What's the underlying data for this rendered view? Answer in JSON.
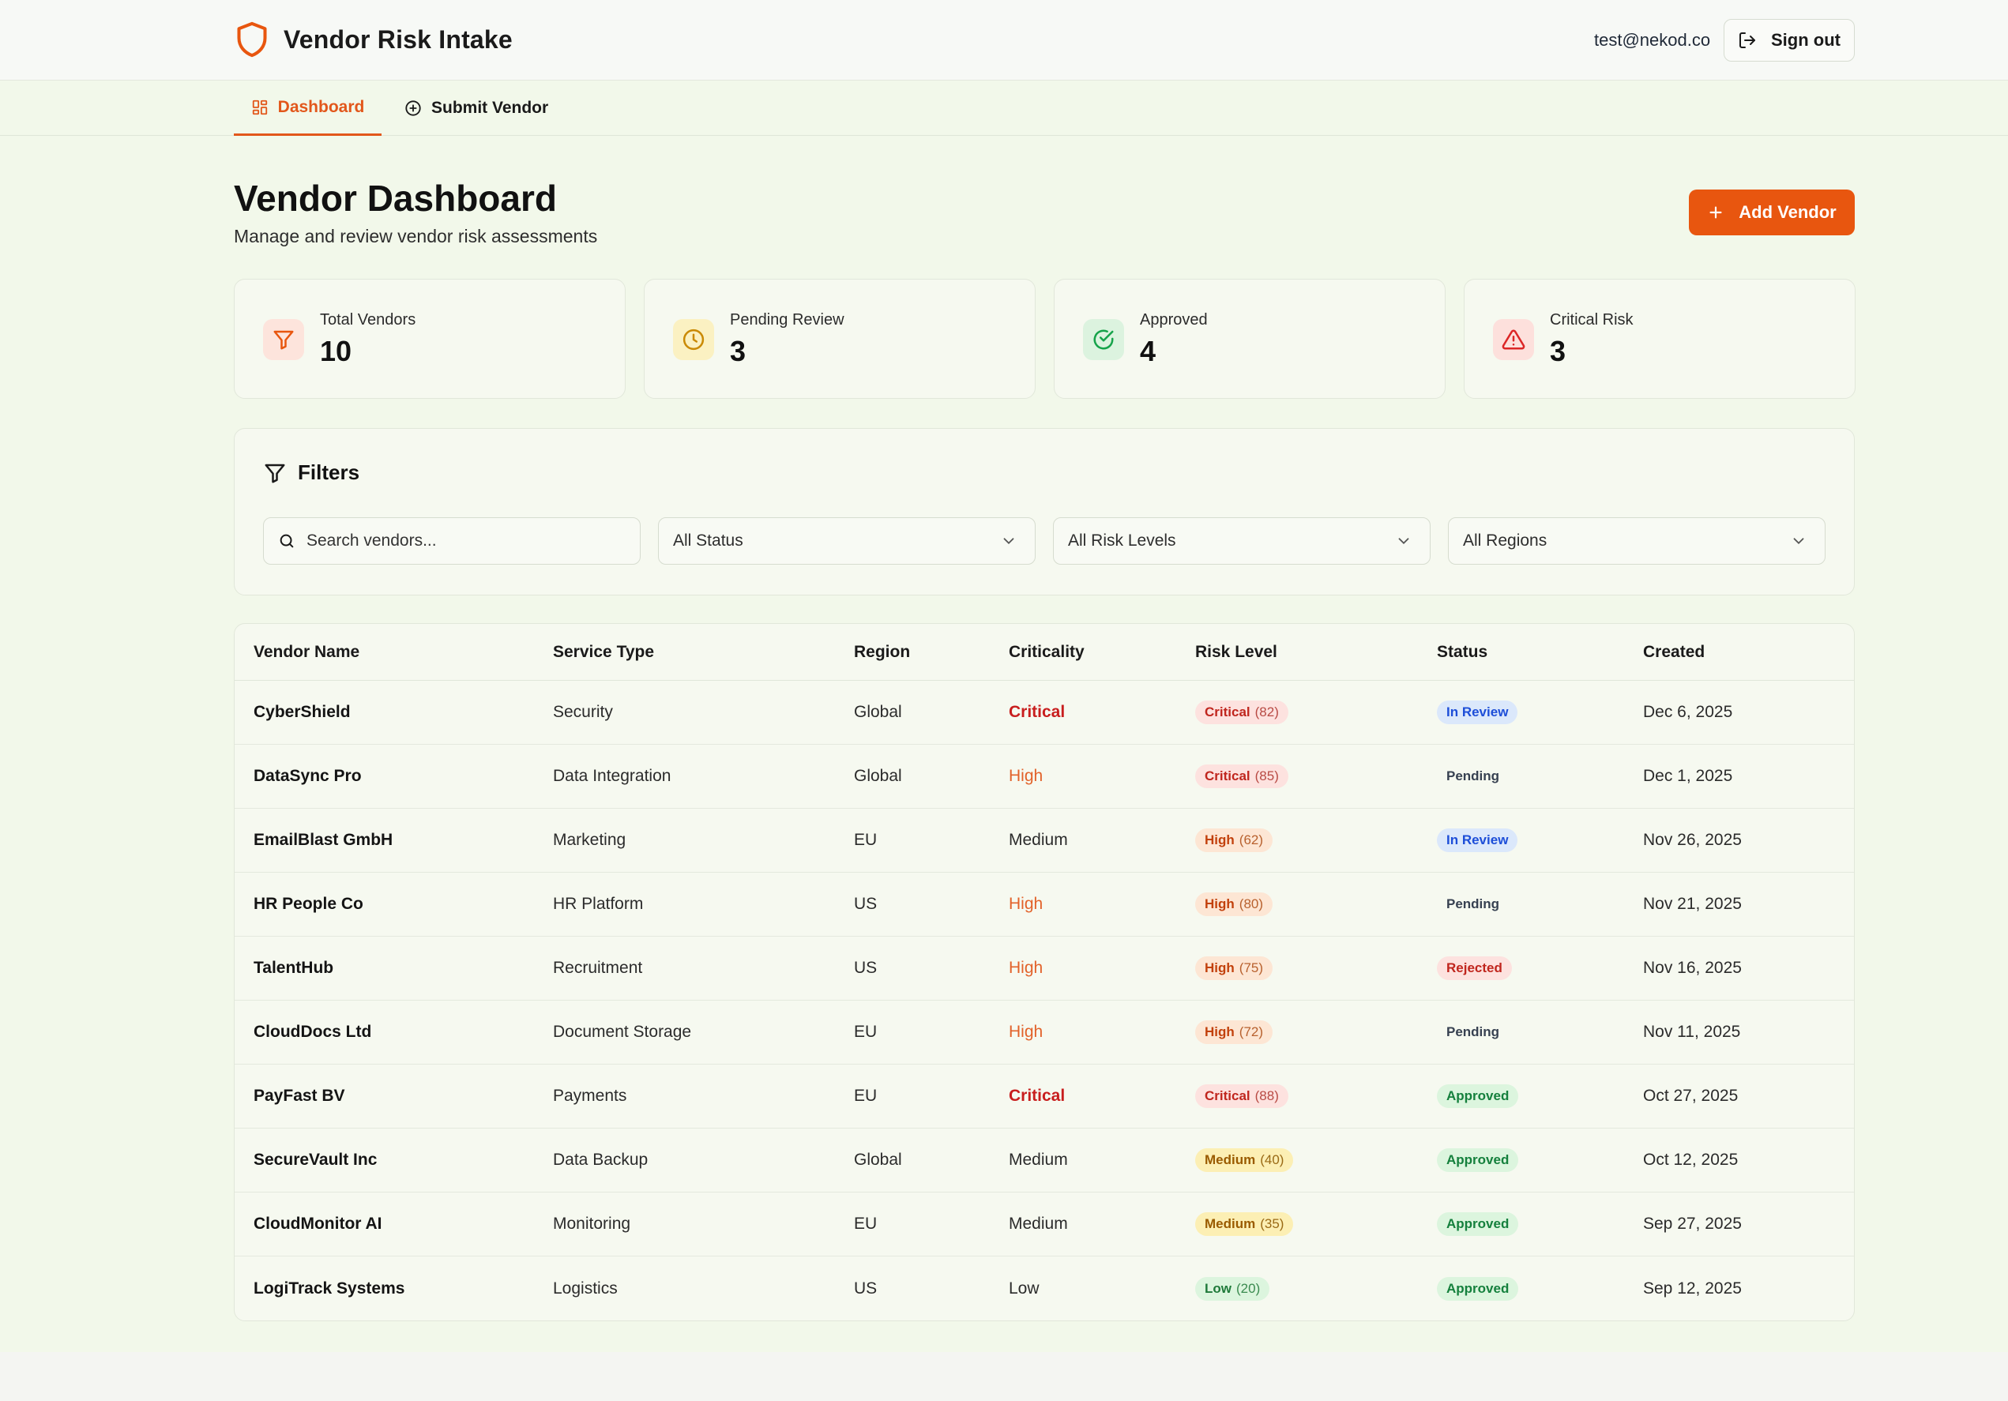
{
  "app": {
    "title": "Vendor Risk Intake",
    "user_email": "test@nekod.co",
    "sign_out_label": "Sign out",
    "accent_color": "#e8560f"
  },
  "tabs": [
    {
      "label": "Dashboard",
      "icon": "grid-icon",
      "active": true
    },
    {
      "label": "Submit Vendor",
      "icon": "plus-circle-icon",
      "active": false
    }
  ],
  "page": {
    "title": "Vendor Dashboard",
    "subtitle": "Manage and review vendor risk assessments",
    "add_button_label": "Add Vendor"
  },
  "stats": [
    {
      "label": "Total Vendors",
      "value": "10",
      "icon": "filter-icon",
      "color": "#e8560f"
    },
    {
      "label": "Pending Review",
      "value": "3",
      "icon": "clock-icon",
      "color": "#ca8a04"
    },
    {
      "label": "Approved",
      "value": "4",
      "icon": "check-circle-icon",
      "color": "#16a34a"
    },
    {
      "label": "Critical Risk",
      "value": "3",
      "icon": "alert-triangle-icon",
      "color": "#dc2626"
    }
  ],
  "filters": {
    "title": "Filters",
    "search_placeholder": "Search vendors...",
    "status_selected": "All Status",
    "risk_selected": "All Risk Levels",
    "region_selected": "All Regions"
  },
  "table": {
    "columns": [
      "Vendor Name",
      "Service Type",
      "Region",
      "Criticality",
      "Risk Level",
      "Status",
      "Created"
    ],
    "rows": [
      {
        "name": "CyberShield",
        "service": "Security",
        "region": "Global",
        "criticality": "Critical",
        "risk": "Critical",
        "score": "(82)",
        "status": "In Review",
        "created": "Dec 6, 2025"
      },
      {
        "name": "DataSync Pro",
        "service": "Data Integration",
        "region": "Global",
        "criticality": "High",
        "risk": "Critical",
        "score": "(85)",
        "status": "Pending",
        "created": "Dec 1, 2025"
      },
      {
        "name": "EmailBlast GmbH",
        "service": "Marketing",
        "region": "EU",
        "criticality": "Medium",
        "risk": "High",
        "score": "(62)",
        "status": "In Review",
        "created": "Nov 26, 2025"
      },
      {
        "name": "HR People Co",
        "service": "HR Platform",
        "region": "US",
        "criticality": "High",
        "risk": "High",
        "score": "(80)",
        "status": "Pending",
        "created": "Nov 21, 2025"
      },
      {
        "name": "TalentHub",
        "service": "Recruitment",
        "region": "US",
        "criticality": "High",
        "risk": "High",
        "score": "(75)",
        "status": "Rejected",
        "created": "Nov 16, 2025"
      },
      {
        "name": "CloudDocs Ltd",
        "service": "Document Storage",
        "region": "EU",
        "criticality": "High",
        "risk": "High",
        "score": "(72)",
        "status": "Pending",
        "created": "Nov 11, 2025"
      },
      {
        "name": "PayFast BV",
        "service": "Payments",
        "region": "EU",
        "criticality": "Critical",
        "risk": "Critical",
        "score": "(88)",
        "status": "Approved",
        "created": "Oct 27, 2025"
      },
      {
        "name": "SecureVault Inc",
        "service": "Data Backup",
        "region": "Global",
        "criticality": "Medium",
        "risk": "Medium",
        "score": "(40)",
        "status": "Approved",
        "created": "Oct 12, 2025"
      },
      {
        "name": "CloudMonitor AI",
        "service": "Monitoring",
        "region": "EU",
        "criticality": "Medium",
        "risk": "Medium",
        "score": "(35)",
        "status": "Approved",
        "created": "Sep 27, 2025"
      },
      {
        "name": "LogiTrack Systems",
        "service": "Logistics",
        "region": "US",
        "criticality": "Low",
        "risk": "Low",
        "score": "(20)",
        "status": "Approved",
        "created": "Sep 12, 2025"
      }
    ]
  }
}
